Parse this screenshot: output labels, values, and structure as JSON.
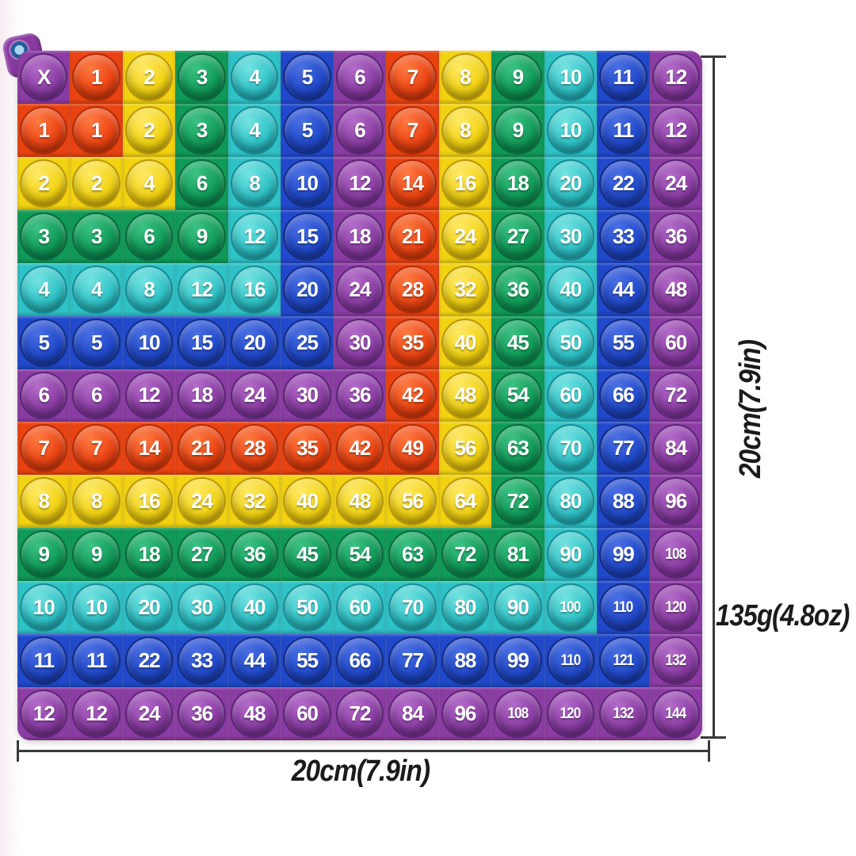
{
  "board": {
    "rows": [
      [
        "X",
        "1",
        "2",
        "3",
        "4",
        "5",
        "6",
        "7",
        "8",
        "9",
        "10",
        "11",
        "12"
      ],
      [
        "1",
        "1",
        "2",
        "3",
        "4",
        "5",
        "6",
        "7",
        "8",
        "9",
        "10",
        "11",
        "12"
      ],
      [
        "2",
        "2",
        "4",
        "6",
        "8",
        "10",
        "12",
        "14",
        "16",
        "18",
        "20",
        "22",
        "24"
      ],
      [
        "3",
        "3",
        "6",
        "9",
        "12",
        "15",
        "18",
        "21",
        "24",
        "27",
        "30",
        "33",
        "36"
      ],
      [
        "4",
        "4",
        "8",
        "12",
        "16",
        "20",
        "24",
        "28",
        "32",
        "36",
        "40",
        "44",
        "48"
      ],
      [
        "5",
        "5",
        "10",
        "15",
        "20",
        "25",
        "30",
        "35",
        "40",
        "45",
        "50",
        "55",
        "60"
      ],
      [
        "6",
        "6",
        "12",
        "18",
        "24",
        "30",
        "36",
        "42",
        "48",
        "54",
        "60",
        "66",
        "72"
      ],
      [
        "7",
        "7",
        "14",
        "21",
        "28",
        "35",
        "42",
        "49",
        "56",
        "63",
        "70",
        "77",
        "84"
      ],
      [
        "8",
        "8",
        "16",
        "24",
        "32",
        "40",
        "48",
        "56",
        "64",
        "72",
        "80",
        "88",
        "96"
      ],
      [
        "9",
        "9",
        "18",
        "27",
        "36",
        "45",
        "54",
        "63",
        "72",
        "81",
        "90",
        "99",
        "108"
      ],
      [
        "10",
        "10",
        "20",
        "30",
        "40",
        "50",
        "60",
        "70",
        "80",
        "90",
        "100",
        "110",
        "120"
      ],
      [
        "11",
        "11",
        "22",
        "33",
        "44",
        "55",
        "66",
        "77",
        "88",
        "99",
        "110",
        "121",
        "132"
      ],
      [
        "12",
        "12",
        "24",
        "36",
        "48",
        "60",
        "72",
        "84",
        "96",
        "108",
        "120",
        "132",
        "144"
      ]
    ],
    "color_rows": [
      "PRYGCBPRYGCBP",
      "RRYGCBPRYGCBP",
      "YYYGCBPRYGCBP",
      "GGGGCBPRYGCBP",
      "CCCCCBPRYGCBP",
      "BBBBBBPRYGCBP",
      "PPPPPPPRYGCBP",
      "RRRRRRRRYGCBP",
      "YYYYYYYYYGCBP",
      "GGGGGGGGGGCBP",
      "CCCCCCCCCCCBP",
      "BBBBBBBBBBBBP",
      "PPPPPPPPPPPPP"
    ],
    "palette": {
      "P": {
        "name": "purple",
        "base": "#8b3da4",
        "light": "#b36cc9",
        "dark": "#5e2478"
      },
      "R": {
        "name": "orange-red",
        "base": "#ea4312",
        "light": "#ff7a42",
        "dark": "#b32c05"
      },
      "Y": {
        "name": "yellow",
        "base": "#f2d312",
        "light": "#ffe966",
        "dark": "#bb9708"
      },
      "G": {
        "name": "green",
        "base": "#109a58",
        "light": "#3cc284",
        "dark": "#086b3c"
      },
      "C": {
        "name": "cyan",
        "base": "#2fc3c7",
        "light": "#74e3e2",
        "dark": "#168d96"
      },
      "B": {
        "name": "blue",
        "base": "#2149cb",
        "light": "#4a6fe3",
        "dark": "#122c85"
      }
    },
    "tab_colors": {
      "body": "#8a3aa2",
      "hole_ring": "#2a5d9e",
      "hole_center": "#a9d9ee"
    }
  },
  "dimensions": {
    "height_label": "20cm(7.9in)",
    "width_label": "20cm(7.9in)",
    "weight_label": "135g(4.8oz)",
    "line_color": "#3a3a3a",
    "text_color": "#1b1b1b"
  }
}
